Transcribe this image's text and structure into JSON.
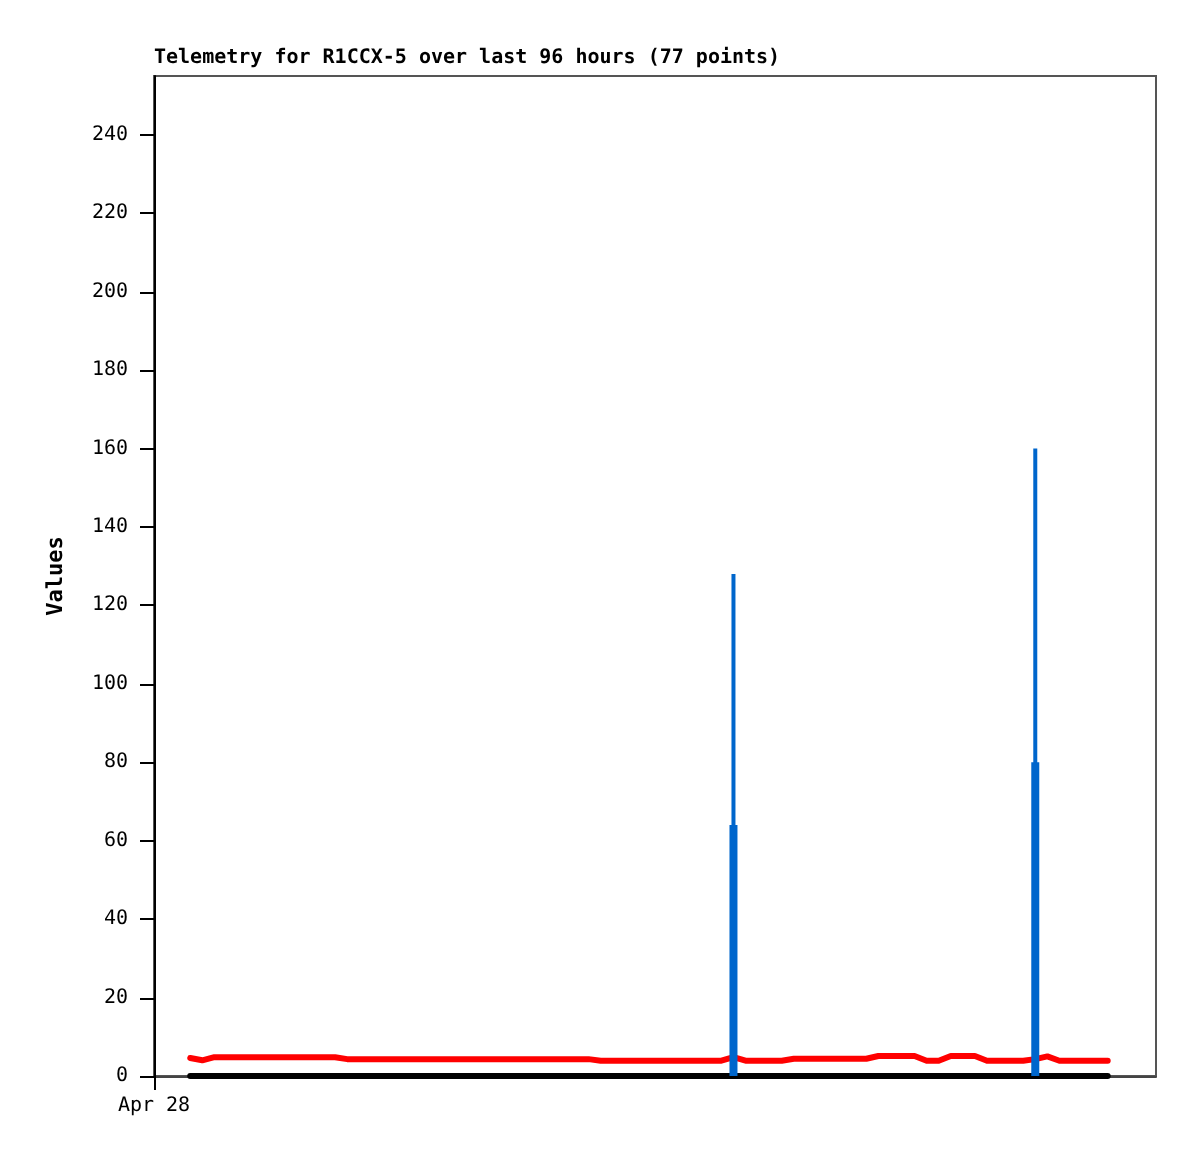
{
  "chart_data": {
    "type": "line",
    "title": "Telemetry for R1CCX-5 over last 96 hours (77 points)",
    "ylabel": "Values",
    "categories": [
      "Apr 28",
      null,
      null,
      null,
      null,
      null,
      null,
      null,
      null,
      null,
      null,
      null,
      null,
      null,
      null,
      null,
      null,
      null,
      null,
      null,
      null,
      null,
      null,
      null,
      null,
      null,
      null,
      null,
      null,
      null,
      null,
      null,
      null,
      null,
      null,
      null,
      null,
      null,
      null,
      null,
      null,
      null,
      null,
      null,
      null,
      null,
      null,
      null,
      null,
      null,
      null,
      null,
      null,
      null,
      null,
      null,
      null,
      null,
      null,
      null,
      null,
      null,
      null,
      null,
      null,
      null,
      null,
      null,
      null,
      null,
      null,
      null,
      null,
      null,
      null,
      null,
      null,
      null,
      null,
      null,
      null,
      null,
      null,
      null
    ],
    "series": [
      {
        "color": "#000000",
        "values": [
          null,
          null,
          null,
          0,
          0,
          0,
          0,
          0,
          0,
          0,
          0,
          0,
          0,
          0,
          0,
          0,
          0,
          0,
          0,
          0,
          0,
          0,
          0,
          0,
          0,
          0,
          0,
          0,
          0,
          0,
          0,
          0,
          0,
          0,
          0,
          0,
          0,
          0,
          0,
          0,
          0,
          0,
          0,
          0,
          0,
          0,
          0,
          0,
          0,
          0,
          0,
          0,
          0,
          0,
          0,
          0,
          0,
          0,
          0,
          0,
          0,
          0,
          0,
          0,
          0,
          0,
          0,
          0,
          0,
          0,
          0,
          0,
          0,
          0,
          0,
          0,
          0,
          0,
          0,
          0,
          null,
          null,
          null,
          null
        ]
      },
      {
        "color": "#ff0000",
        "values": [
          null,
          null,
          null,
          4.6,
          4,
          4.8,
          4.8,
          4.8,
          4.8,
          4.8,
          4.8,
          4.8,
          4.8,
          4.8,
          4.8,
          4.8,
          4.3,
          4.3,
          4.3,
          4.3,
          4.3,
          4.3,
          4.3,
          4.3,
          4.3,
          4.3,
          4.3,
          4.3,
          4.3,
          4.3,
          4.3,
          4.3,
          4.3,
          4.3,
          4.3,
          4.3,
          4.3,
          3.9,
          3.9,
          3.9,
          3.9,
          3.9,
          3.9,
          3.9,
          3.9,
          3.9,
          3.9,
          3.9,
          4.8,
          3.9,
          3.9,
          3.9,
          3.9,
          4.4,
          4.4,
          4.4,
          4.4,
          4.4,
          4.4,
          4.4,
          5.1,
          5.1,
          5.1,
          5.1,
          3.9,
          3.9,
          5.1,
          5.1,
          5.1,
          3.9,
          3.9,
          3.9,
          3.9,
          4.3,
          5,
          3.9,
          3.9,
          3.9,
          3.9,
          3.9,
          null,
          null,
          null,
          null
        ]
      },
      {
        "type": "bar",
        "color": "#0066cc",
        "values": [
          null,
          null,
          null,
          null,
          null,
          null,
          null,
          null,
          null,
          null,
          null,
          null,
          null,
          null,
          null,
          null,
          null,
          null,
          null,
          null,
          null,
          null,
          null,
          null,
          null,
          null,
          null,
          null,
          null,
          null,
          null,
          null,
          null,
          null,
          null,
          null,
          null,
          null,
          null,
          null,
          null,
          null,
          null,
          null,
          null,
          null,
          null,
          null,
          64,
          null,
          null,
          null,
          null,
          null,
          null,
          null,
          null,
          null,
          null,
          null,
          null,
          null,
          null,
          null,
          null,
          null,
          null,
          null,
          null,
          null,
          null,
          null,
          null,
          80,
          null,
          null,
          null,
          null,
          null,
          null,
          null,
          null,
          null,
          null
        ]
      },
      {
        "type": "bar",
        "color": "#0066cc",
        "values": [
          null,
          null,
          null,
          null,
          null,
          null,
          null,
          null,
          null,
          null,
          null,
          null,
          null,
          null,
          null,
          null,
          null,
          null,
          null,
          null,
          null,
          null,
          null,
          null,
          null,
          null,
          null,
          null,
          null,
          null,
          null,
          null,
          null,
          null,
          null,
          null,
          null,
          null,
          null,
          null,
          null,
          null,
          null,
          null,
          null,
          null,
          null,
          null,
          128,
          null,
          null,
          null,
          null,
          null,
          null,
          null,
          null,
          null,
          null,
          null,
          null,
          null,
          null,
          null,
          null,
          null,
          null,
          null,
          null,
          null,
          null,
          null,
          null,
          160,
          null,
          null,
          null,
          null,
          null,
          null,
          null,
          null,
          null,
          null
        ]
      }
    ],
    "ylim": [
      0,
      255
    ],
    "yticks": [
      0,
      20,
      40,
      60,
      80,
      100,
      120,
      140,
      160,
      180,
      200,
      220,
      240
    ],
    "grid": false,
    "marker": "none"
  }
}
